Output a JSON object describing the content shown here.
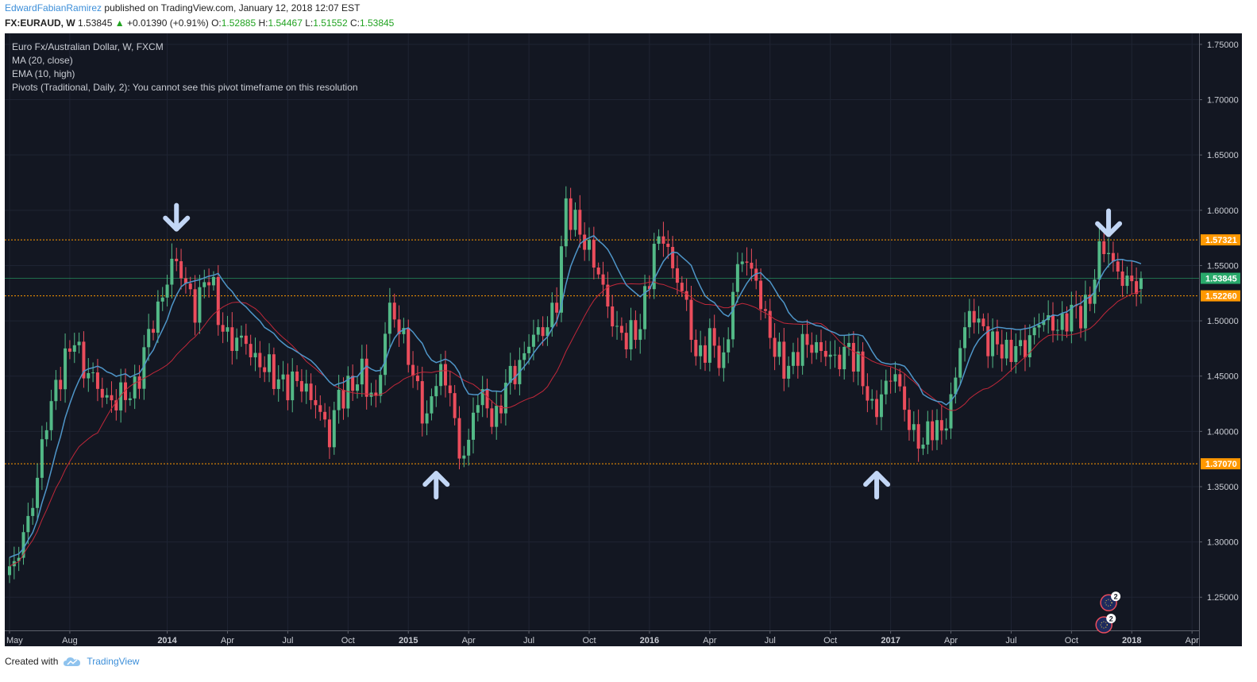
{
  "header": {
    "author": "EdwardFabianRamirez",
    "published": "published on TradingView.com, January 12, 2018 12:07 EST",
    "symbol": "FX:EURAUD, W",
    "price": "1.53845",
    "change_arrow": "▲",
    "change": "+0.01390 (+0.91%)",
    "o_label": "O:",
    "o_value": "1.52885",
    "h_label": "H:",
    "h_value": "1.54467",
    "l_label": "L:",
    "l_value": "1.51552",
    "c_label": "C:",
    "c_value": "1.53845"
  },
  "legend": {
    "title": "Euro Fx/Australian Dollar, W, FXCM",
    "ma": "MA (20, close)",
    "ema": "EMA (10, high)",
    "pivots": "Pivots (Traditional, Daily, 2): You cannot see this pivot timeframe on this resolution"
  },
  "footer": {
    "created_with": "Created with",
    "brand": "TradingView"
  },
  "colors": {
    "background": "#131722",
    "bull": "#53b987",
    "bear": "#eb4d5c",
    "ma": "#4f96c9",
    "ema": "#c1283a",
    "level": "#ff9800",
    "price_tag": "#29a96b",
    "arrow": "#c2d6f5"
  },
  "chart_data": {
    "type": "candlestick",
    "title": "Euro Fx/Australian Dollar, W, FXCM",
    "ylim": [
      1.22,
      1.76
    ],
    "y_ticks": [
      "1.75000",
      "1.70000",
      "1.65000",
      "1.60000",
      "1.55000",
      "1.50000",
      "1.45000",
      "1.40000",
      "1.35000",
      "1.30000",
      "1.25000"
    ],
    "y_tick_values": [
      1.75,
      1.7,
      1.65,
      1.6,
      1.55,
      1.5,
      1.45,
      1.4,
      1.35,
      1.3,
      1.25
    ],
    "x_ticks": [
      {
        "label": "May",
        "week": 0,
        "bold": false
      },
      {
        "label": "Aug",
        "week": 13,
        "bold": false
      },
      {
        "label": "2014",
        "week": 34,
        "bold": true
      },
      {
        "label": "Apr",
        "week": 47,
        "bold": false
      },
      {
        "label": "Jul",
        "week": 60,
        "bold": false
      },
      {
        "label": "Oct",
        "week": 73,
        "bold": false
      },
      {
        "label": "2015",
        "week": 86,
        "bold": true
      },
      {
        "label": "Apr",
        "week": 99,
        "bold": false
      },
      {
        "label": "Jul",
        "week": 112,
        "bold": false
      },
      {
        "label": "Oct",
        "week": 125,
        "bold": false
      },
      {
        "label": "2016",
        "week": 138,
        "bold": true
      },
      {
        "label": "Apr",
        "week": 151,
        "bold": false
      },
      {
        "label": "Jul",
        "week": 164,
        "bold": false
      },
      {
        "label": "Oct",
        "week": 177,
        "bold": false
      },
      {
        "label": "2017",
        "week": 190,
        "bold": true
      },
      {
        "label": "Apr",
        "week": 203,
        "bold": false
      },
      {
        "label": "Jul",
        "week": 216,
        "bold": false
      },
      {
        "label": "Oct",
        "week": 229,
        "bold": false
      },
      {
        "label": "2018",
        "week": 242,
        "bold": true
      },
      {
        "label": "Apr",
        "week": 255,
        "bold": false
      }
    ],
    "x_max_week": 260,
    "anchors": [
      [
        0,
        1.272
      ],
      [
        5,
        1.33
      ],
      [
        8,
        1.415
      ],
      [
        12,
        1.46
      ],
      [
        14,
        1.49
      ],
      [
        16,
        1.455
      ],
      [
        19,
        1.44
      ],
      [
        23,
        1.425
      ],
      [
        27,
        1.44
      ],
      [
        29,
        1.47
      ],
      [
        32,
        1.51
      ],
      [
        35,
        1.555
      ],
      [
        37,
        1.54
      ],
      [
        40,
        1.515
      ],
      [
        43,
        1.54
      ],
      [
        45,
        1.505
      ],
      [
        48,
        1.48
      ],
      [
        51,
        1.48
      ],
      [
        54,
        1.462
      ],
      [
        57,
        1.448
      ],
      [
        60,
        1.445
      ],
      [
        63,
        1.44
      ],
      [
        66,
        1.43
      ],
      [
        69,
        1.39
      ],
      [
        71,
        1.436
      ],
      [
        74,
        1.44
      ],
      [
        76,
        1.45
      ],
      [
        79,
        1.43
      ],
      [
        82,
        1.51
      ],
      [
        85,
        1.488
      ],
      [
        88,
        1.43
      ],
      [
        90,
        1.41
      ],
      [
        92,
        1.455
      ],
      [
        95,
        1.435
      ],
      [
        97,
        1.38
      ],
      [
        99,
        1.39
      ],
      [
        101,
        1.43
      ],
      [
        103,
        1.425
      ],
      [
        105,
        1.41
      ],
      [
        107,
        1.44
      ],
      [
        109,
        1.455
      ],
      [
        112,
        1.48
      ],
      [
        115,
        1.49
      ],
      [
        118,
        1.52
      ],
      [
        120,
        1.6
      ],
      [
        123,
        1.585
      ],
      [
        126,
        1.55
      ],
      [
        128,
        1.53
      ],
      [
        131,
        1.49
      ],
      [
        133,
        1.48
      ],
      [
        136,
        1.5
      ],
      [
        139,
        1.56
      ],
      [
        141,
        1.58
      ],
      [
        143,
        1.55
      ],
      [
        146,
        1.51
      ],
      [
        148,
        1.47
      ],
      [
        151,
        1.48
      ],
      [
        154,
        1.46
      ],
      [
        156,
        1.53
      ],
      [
        158,
        1.555
      ],
      [
        161,
        1.54
      ],
      [
        163,
        1.5
      ],
      [
        165,
        1.47
      ],
      [
        168,
        1.46
      ],
      [
        171,
        1.475
      ],
      [
        174,
        1.48
      ],
      [
        176,
        1.47
      ],
      [
        178,
        1.46
      ],
      [
        181,
        1.48
      ],
      [
        183,
        1.455
      ],
      [
        186,
        1.42
      ],
      [
        189,
        1.44
      ],
      [
        191,
        1.45
      ],
      [
        193,
        1.425
      ],
      [
        195,
        1.395
      ],
      [
        197,
        1.385
      ],
      [
        199,
        1.41
      ],
      [
        201,
        1.4
      ],
      [
        203,
        1.42
      ],
      [
        205,
        1.48
      ],
      [
        207,
        1.51
      ],
      [
        209,
        1.495
      ],
      [
        211,
        1.48
      ],
      [
        213,
        1.485
      ],
      [
        215,
        1.465
      ],
      [
        217,
        1.475
      ],
      [
        219,
        1.48
      ],
      [
        221,
        1.49
      ],
      [
        223,
        1.5
      ],
      [
        225,
        1.5
      ],
      [
        227,
        1.495
      ],
      [
        229,
        1.505
      ],
      [
        231,
        1.51
      ],
      [
        233,
        1.52
      ],
      [
        235,
        1.56
      ],
      [
        237,
        1.565
      ],
      [
        239,
        1.545
      ],
      [
        241,
        1.53
      ],
      [
        243,
        1.535
      ],
      [
        244,
        1.53845
      ]
    ],
    "levels": [
      {
        "value": 1.57321,
        "label": "1.57321"
      },
      {
        "value": 1.5226,
        "label": "1.52260"
      },
      {
        "value": 1.3707,
        "label": "1.37070"
      }
    ],
    "last_price": {
      "value": 1.53845,
      "label": "1.53845"
    },
    "annotations": [
      {
        "type": "arrow-down",
        "week": 36,
        "value": 1.58
      },
      {
        "type": "arrow-up",
        "week": 92,
        "value": 1.365
      },
      {
        "type": "arrow-up",
        "week": 187,
        "value": 1.365
      },
      {
        "type": "arrow-down",
        "week": 237,
        "value": 1.575
      }
    ],
    "event_badges": [
      {
        "week": 237,
        "value": 1.245,
        "count": "2"
      },
      {
        "week": 236,
        "value": 1.225,
        "count": "2"
      }
    ],
    "series": [
      {
        "name": "MA (20, close)",
        "color": "#4f96c9"
      },
      {
        "name": "EMA (10, high)",
        "color": "#c1283a"
      }
    ]
  }
}
